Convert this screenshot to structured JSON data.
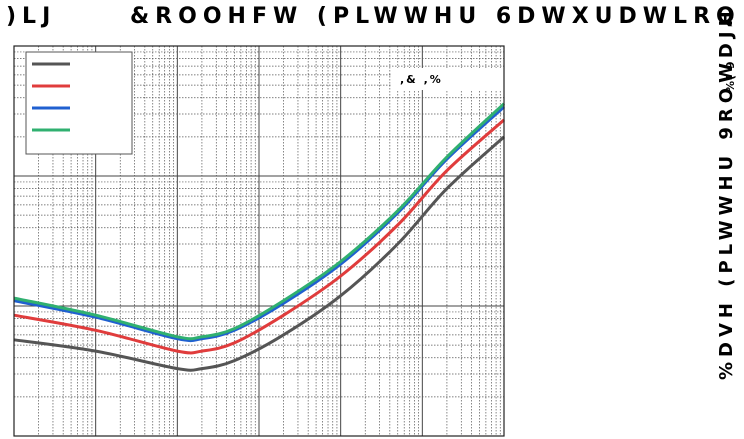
{
  "figure": {
    "label": ")LJ",
    "title": "&ROOHFW (PLWWHU 6DWXUDWLRQ",
    "ylabel_main": "%DVH (PLWWHU 9ROWDJH",
    "ylabel_sub": "%( 9"
  },
  "chart_data": {
    "type": "line",
    "title": "&ROOHFW (PLWWHU 6DWXUDWLRQ",
    "xlabel": "",
    "ylabel": "%DVH (PLWWHU 9ROWDJH",
    "annotation": ",& ,%",
    "xscale": "log",
    "xlim": [
      0.0001,
      100
    ],
    "ylim": [
      0.1,
      100
    ],
    "yscale": "log",
    "grid": true,
    "legend_position": "top-left",
    "series": [
      {
        "color": "#555555",
        "points": [
          [
            0.0001,
            0.55
          ],
          [
            0.001,
            0.45
          ],
          [
            0.01,
            0.33
          ],
          [
            0.02,
            0.33
          ],
          [
            0.05,
            0.38
          ],
          [
            0.2,
            0.6
          ],
          [
            1,
            1.2
          ],
          [
            5,
            3.0
          ],
          [
            20,
            8.0
          ],
          [
            100,
            20.0
          ]
        ]
      },
      {
        "color": "#e03c3c",
        "points": [
          [
            0.0001,
            0.85
          ],
          [
            0.001,
            0.65
          ],
          [
            0.01,
            0.45
          ],
          [
            0.02,
            0.45
          ],
          [
            0.05,
            0.52
          ],
          [
            0.2,
            0.85
          ],
          [
            1,
            1.7
          ],
          [
            5,
            4.2
          ],
          [
            20,
            11.0
          ],
          [
            100,
            27.0
          ]
        ]
      },
      {
        "color": "#2060d0",
        "points": [
          [
            0.0001,
            1.1
          ],
          [
            0.001,
            0.82
          ],
          [
            0.01,
            0.56
          ],
          [
            0.02,
            0.56
          ],
          [
            0.05,
            0.65
          ],
          [
            0.2,
            1.05
          ],
          [
            1,
            2.1
          ],
          [
            5,
            5.2
          ],
          [
            20,
            13.5
          ],
          [
            100,
            34.0
          ]
        ]
      },
      {
        "color": "#30b070",
        "points": [
          [
            0.0001,
            1.15
          ],
          [
            0.001,
            0.85
          ],
          [
            0.01,
            0.58
          ],
          [
            0.02,
            0.58
          ],
          [
            0.05,
            0.67
          ],
          [
            0.2,
            1.1
          ],
          [
            1,
            2.2
          ],
          [
            5,
            5.4
          ],
          [
            20,
            14.0
          ],
          [
            100,
            36.0
          ]
        ]
      }
    ]
  }
}
